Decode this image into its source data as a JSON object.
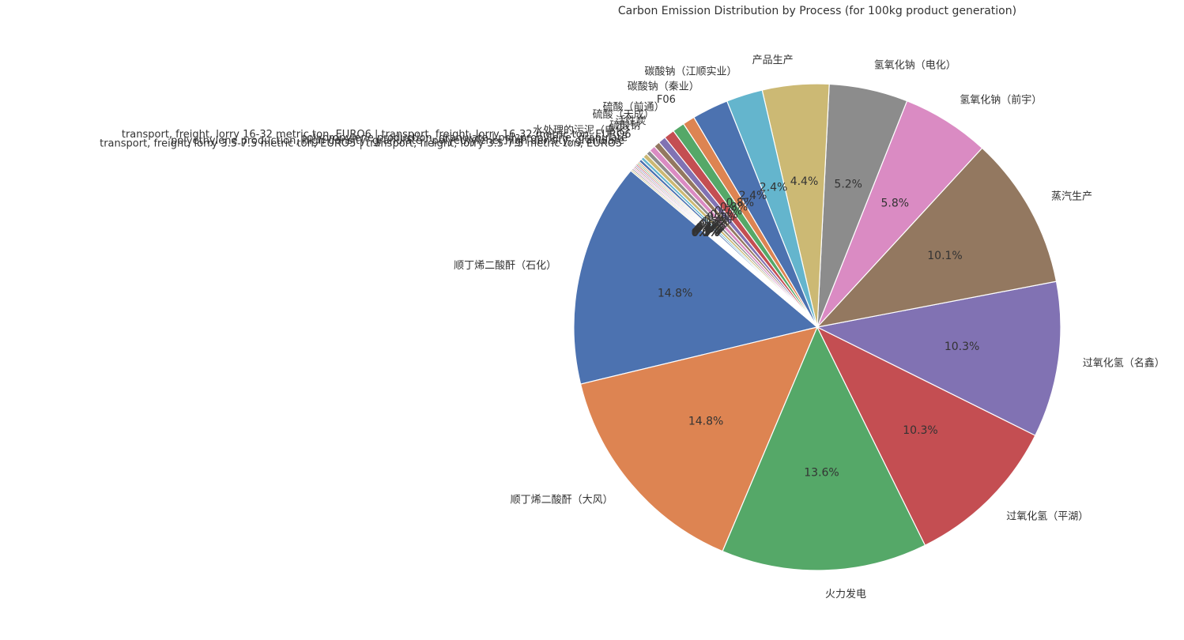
{
  "chart_data": {
    "type": "pie",
    "title": "Carbon Emission Distribution by Process (for 100kg product generation)",
    "start_angle_deg": 140,
    "direction": "counterclockwise",
    "slices": [
      {
        "label": "顺丁烯二酸酐（石化）",
        "value": 14.8,
        "pct_label": "14.8%",
        "color": "#4c72b0"
      },
      {
        "label": "顺丁烯二酸酐（大风）",
        "value": 14.8,
        "pct_label": "14.8%",
        "color": "#dd8452"
      },
      {
        "label": "火力发电",
        "value": 13.6,
        "pct_label": "13.6%",
        "color": "#55a868"
      },
      {
        "label": "过氧化氢（平湖）",
        "value": 10.3,
        "pct_label": "10.3%",
        "color": "#c44e52"
      },
      {
        "label": "过氧化氢（名鑫）",
        "value": 10.3,
        "pct_label": "10.3%",
        "color": "#8172b3"
      },
      {
        "label": "蒸汽生产",
        "value": 10.1,
        "pct_label": "10.1%",
        "color": "#937860"
      },
      {
        "label": "氢氧化钠（前宇）",
        "value": 5.8,
        "pct_label": "5.8%",
        "color": "#da8bc3"
      },
      {
        "label": "氢氧化钠（电化）",
        "value": 5.2,
        "pct_label": "5.2%",
        "color": "#8c8c8c"
      },
      {
        "label": "产品生产",
        "value": 4.4,
        "pct_label": "4.4%",
        "color": "#ccb974"
      },
      {
        "label": "碳酸钠（江顺实业）",
        "value": 2.4,
        "pct_label": "2.4%",
        "color": "#64b5cd"
      },
      {
        "label": "碳酸钠（秦业）",
        "value": 2.4,
        "pct_label": "2.4%",
        "color": "#4c72b0"
      },
      {
        "label": "F06",
        "value": 0.8,
        "pct_label": "0.8%",
        "color": "#dd8452"
      },
      {
        "label": "硫酸（前通）",
        "value": 0.8,
        "pct_label": "0.8%",
        "color": "#55a868"
      },
      {
        "label": "硫酸（天成）",
        "value": 0.7,
        "pct_label": "0.7%",
        "color": "#c44e52"
      },
      {
        "label": "活性炭",
        "value": 0.5,
        "pct_label": "0.5%",
        "color": "#8172b3"
      },
      {
        "label": "硫酸钠",
        "value": 0.4,
        "pct_label": "0.4%",
        "color": "#937860"
      },
      {
        "label": "水处理的污泥（电化）",
        "value": 0.4,
        "pct_label": "0.4%",
        "color": "#da8bc3"
      },
      {
        "label": "transport, freight, lorry 16-32 metric ton, EURO6 | transport, freight, lorry 16-32 metric ton, EURO6",
        "value": 0.3,
        "pct_label": "0.3%",
        "color": "#8c8c8c"
      },
      {
        "label": "polypropylene production, granulate | polypropylene, granulate",
        "value": 0.3,
        "pct_label": "0.3%",
        "color": "#ccb974"
      },
      {
        "label": "polyethylene production, high density, granulate | polyethylene, high density, granulate",
        "value": 0.2,
        "pct_label": "0.2%",
        "color": "#64b5cd"
      },
      {
        "label": "transport, freight, lorry 3.5-7.5 metric ton, EURO5 | transport, freight, lorry 3.5-7.5 metric ton, EURO5",
        "value": 0.2,
        "pct_label": "0.2%",
        "color": "#4c72b0"
      },
      {
        "label": "",
        "value": 0.1,
        "pct_label": "0.1%",
        "color": "#dd8452"
      },
      {
        "label": "",
        "value": 0.1,
        "pct_label": "0.1%",
        "color": "#55a868"
      },
      {
        "label": "",
        "value": 0.1,
        "pct_label": "0.1%",
        "color": "#c44e52"
      },
      {
        "label": "",
        "value": 0.1,
        "pct_label": "0.1%",
        "color": "#8172b3"
      },
      {
        "label": "",
        "value": 0.1,
        "pct_label": "0.1%",
        "color": "#937860"
      },
      {
        "label": "",
        "value": 0.1,
        "pct_label": "0.1%",
        "color": "#da8bc3"
      },
      {
        "label": "",
        "value": 0.1,
        "pct_label": "0.1%",
        "color": "#8c8c8c"
      },
      {
        "label": "",
        "value": 0.1,
        "pct_label": "0.1%",
        "color": "#ccb974"
      },
      {
        "label": "",
        "value": 0.0,
        "pct_label": "0.0%",
        "color": "#64b5cd"
      },
      {
        "label": "",
        "value": 0.0,
        "pct_label": "0.0%",
        "color": "#4c72b0"
      },
      {
        "label": "",
        "value": 0.0,
        "pct_label": "0.0%",
        "color": "#dd8452"
      },
      {
        "label": "",
        "value": 0.0,
        "pct_label": "0.0%",
        "color": "#55a868"
      },
      {
        "label": "",
        "value": 0.0,
        "pct_label": "0.0%",
        "color": "#c44e52"
      }
    ]
  }
}
